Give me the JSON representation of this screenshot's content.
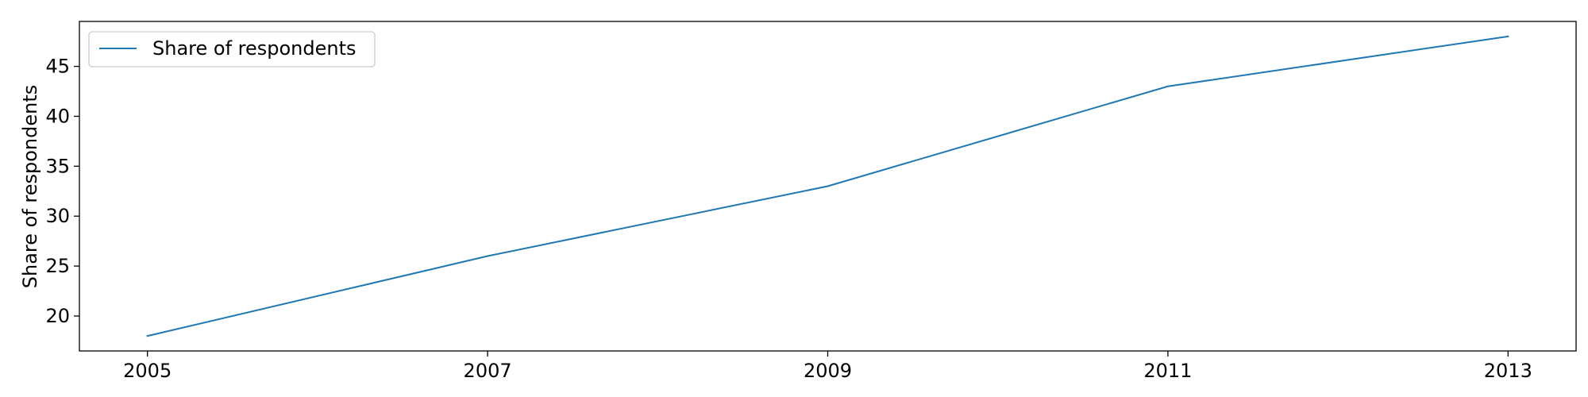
{
  "chart_data": {
    "type": "line",
    "title": "",
    "xlabel": "",
    "ylabel": "Share of respondents",
    "x": [
      2005,
      2007,
      2009,
      2011,
      2013
    ],
    "series": [
      {
        "name": "Share of respondents",
        "values": [
          18,
          26,
          33,
          43,
          48
        ],
        "color": "#1f77b4"
      }
    ],
    "xticks": [
      "2005",
      "2007",
      "2009",
      "2011",
      "2013"
    ],
    "yticks": [
      "20",
      "25",
      "30",
      "35",
      "40",
      "45"
    ],
    "xlim": [
      2004.6,
      2013.4
    ],
    "ylim": [
      16.5,
      49.5
    ],
    "grid": false,
    "legend_position": "top-left"
  }
}
